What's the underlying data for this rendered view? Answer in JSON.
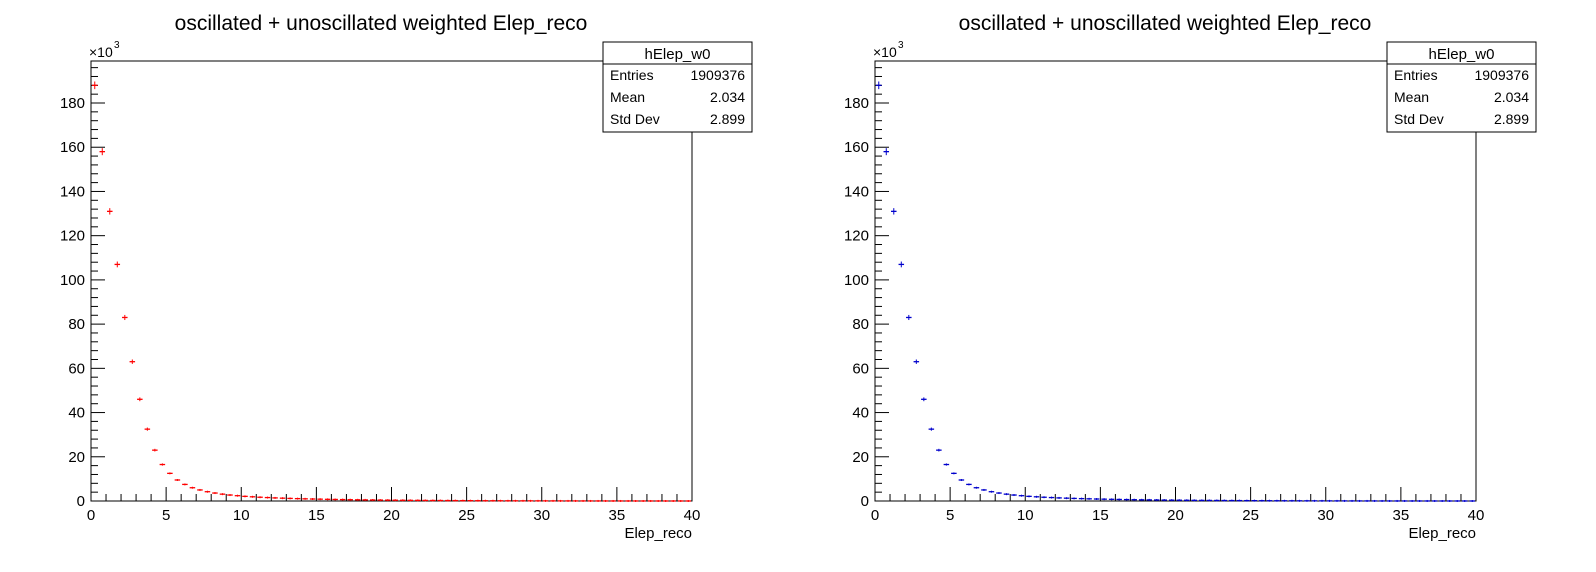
{
  "chart_data": [
    {
      "type": "histogram",
      "title": "oscillated + unoscillated weighted Elep_reco",
      "xlabel": "Elep_reco",
      "ylabel": "",
      "xlim": [
        0,
        40
      ],
      "ylim": [
        0,
        199000
      ],
      "y_multiplier_label": "×10",
      "y_multiplier_exp": "3",
      "x_ticks": [
        "0",
        "5",
        "10",
        "15",
        "20",
        "25",
        "30",
        "35",
        "40"
      ],
      "y_ticks": [
        "0",
        "20",
        "40",
        "60",
        "80",
        "100",
        "120",
        "140",
        "160",
        "180"
      ],
      "grid": false,
      "marker_color": "#ff0000",
      "bin_width": 0.5,
      "bins_center": [
        0.25,
        0.75,
        1.25,
        1.75,
        2.25,
        2.75,
        3.25,
        3.75,
        4.25,
        4.75,
        5.25,
        5.75,
        6.25,
        6.75,
        7.25,
        7.75,
        8.25,
        8.75,
        9.25,
        9.75,
        10.25,
        10.75,
        11.25,
        11.75,
        12.25,
        12.75,
        13.25,
        13.75,
        14.25,
        14.75,
        15.25,
        15.75,
        16.25,
        16.75,
        17.25,
        17.75,
        18.25,
        18.75,
        19.25,
        19.75,
        20.25,
        20.75,
        21.25,
        21.75,
        22.25,
        22.75,
        23.25,
        23.75,
        24.25,
        24.75,
        25.25,
        25.75,
        26.25,
        26.75,
        27.25,
        27.75,
        28.25,
        28.75,
        29.25,
        29.75,
        30.25,
        30.75,
        31.25,
        31.75,
        32.25,
        32.75,
        33.25,
        33.75,
        34.25,
        34.75,
        35.25,
        35.75,
        36.25,
        36.75,
        37.25,
        37.75,
        38.25,
        38.75,
        39.25,
        39.75
      ],
      "values": [
        188000,
        158000,
        131000,
        107000,
        83000,
        63000,
        46000,
        32500,
        23000,
        16500,
        12500,
        9500,
        7500,
        6000,
        5000,
        4200,
        3600,
        3100,
        2700,
        2400,
        2100,
        1900,
        1700,
        1550,
        1400,
        1280,
        1170,
        1070,
        980,
        900,
        830,
        760,
        700,
        640,
        590,
        540,
        500,
        460,
        420,
        390,
        360,
        330,
        300,
        280,
        260,
        240,
        220,
        200,
        185,
        170,
        155,
        140,
        130,
        120,
        110,
        100,
        90,
        80,
        72,
        65,
        58,
        52,
        46,
        41,
        36,
        32,
        28,
        25,
        22,
        19,
        17,
        15,
        13,
        11,
        10,
        9,
        8,
        7,
        6,
        5
      ],
      "stats": {
        "name": "hElep_w0",
        "rows": [
          {
            "label": "Entries",
            "value": "1909376"
          },
          {
            "label": "Mean",
            "value": "2.034"
          },
          {
            "label": "Std Dev",
            "value": "2.899"
          }
        ]
      }
    },
    {
      "type": "histogram",
      "title": "oscillated + unoscillated weighted Elep_reco",
      "xlabel": "Elep_reco",
      "ylabel": "",
      "xlim": [
        0,
        40
      ],
      "ylim": [
        0,
        199000
      ],
      "y_multiplier_label": "×10",
      "y_multiplier_exp": "3",
      "x_ticks": [
        "0",
        "5",
        "10",
        "15",
        "20",
        "25",
        "30",
        "35",
        "40"
      ],
      "y_ticks": [
        "0",
        "20",
        "40",
        "60",
        "80",
        "100",
        "120",
        "140",
        "160",
        "180"
      ],
      "grid": false,
      "marker_color": "#0000cc",
      "bin_width": 0.5,
      "bins_center": [
        0.25,
        0.75,
        1.25,
        1.75,
        2.25,
        2.75,
        3.25,
        3.75,
        4.25,
        4.75,
        5.25,
        5.75,
        6.25,
        6.75,
        7.25,
        7.75,
        8.25,
        8.75,
        9.25,
        9.75,
        10.25,
        10.75,
        11.25,
        11.75,
        12.25,
        12.75,
        13.25,
        13.75,
        14.25,
        14.75,
        15.25,
        15.75,
        16.25,
        16.75,
        17.25,
        17.75,
        18.25,
        18.75,
        19.25,
        19.75,
        20.25,
        20.75,
        21.25,
        21.75,
        22.25,
        22.75,
        23.25,
        23.75,
        24.25,
        24.75,
        25.25,
        25.75,
        26.25,
        26.75,
        27.25,
        27.75,
        28.25,
        28.75,
        29.25,
        29.75,
        30.25,
        30.75,
        31.25,
        31.75,
        32.25,
        32.75,
        33.25,
        33.75,
        34.25,
        34.75,
        35.25,
        35.75,
        36.25,
        36.75,
        37.25,
        37.75,
        38.25,
        38.75,
        39.25,
        39.75
      ],
      "values": [
        188000,
        158000,
        131000,
        107000,
        83000,
        63000,
        46000,
        32500,
        23000,
        16500,
        12500,
        9500,
        7500,
        6000,
        5000,
        4200,
        3600,
        3100,
        2700,
        2400,
        2100,
        1900,
        1700,
        1550,
        1400,
        1280,
        1170,
        1070,
        980,
        900,
        830,
        760,
        700,
        640,
        590,
        540,
        500,
        460,
        420,
        390,
        360,
        330,
        300,
        280,
        260,
        240,
        220,
        200,
        185,
        170,
        155,
        140,
        130,
        120,
        110,
        100,
        90,
        80,
        72,
        65,
        58,
        52,
        46,
        41,
        36,
        32,
        28,
        25,
        22,
        19,
        17,
        15,
        13,
        11,
        10,
        9,
        8,
        7,
        6,
        5
      ],
      "stats": {
        "name": "hElep_w0",
        "rows": [
          {
            "label": "Entries",
            "value": "1909376"
          },
          {
            "label": "Mean",
            "value": "2.034"
          },
          {
            "label": "Std Dev",
            "value": "2.899"
          }
        ]
      }
    }
  ]
}
